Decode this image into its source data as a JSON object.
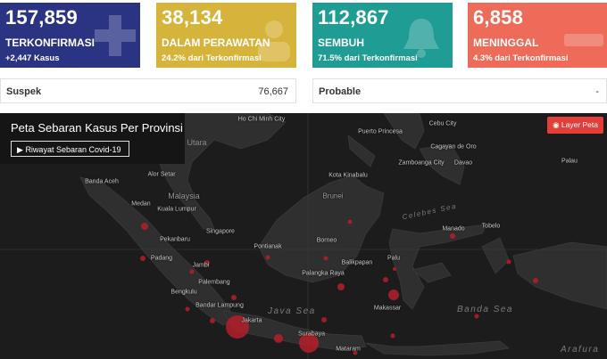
{
  "stats": {
    "confirmed": {
      "value": "157,859",
      "label": "TERKONFIRMASI",
      "sub": "+2,447 Kasus",
      "color": "#2a3483",
      "icon": "plus-icon"
    },
    "treated": {
      "value": "38,134",
      "label": "DALAM PERAWATAN",
      "sub": "24.2% dari Terkonfirmasi",
      "color": "#d6b33a",
      "icon": "patient-icon"
    },
    "recovered": {
      "value": "112,867",
      "label": "SEMBUH",
      "sub": "71.5% dari Terkonfirmasi",
      "color": "#1f9c93",
      "icon": "bell-icon"
    },
    "deaths": {
      "value": "6,858",
      "label": "MENINGGAL",
      "sub": "4.3% dari Terkonfirmasi",
      "color": "#ee6b5a",
      "icon": "minus-icon"
    }
  },
  "suspect": {
    "label": "Suspek",
    "value": "76,667"
  },
  "probable": {
    "label": "Probable",
    "value": "-"
  },
  "map": {
    "title": "Peta Sebaran Kasus Per Provinsi",
    "history_button": "Riwayat Sebaran Covid-19",
    "layer_button": "Layer Peta",
    "cities": [
      "Ho Chi Minh City",
      "Cebu City",
      "Puerto Princesa",
      "Cagayan de Oro",
      "Zamboanga City",
      "Davao",
      "Palau",
      "Banda Aceh",
      "Alor Setar",
      "Kota Kinabalu",
      "Malaysia",
      "Medan",
      "Kuala Lumpur",
      "Brunei",
      "Singapore",
      "Pekanbaru",
      "Pontianak",
      "Borneo",
      "Manado",
      "Tobelo",
      "Padang",
      "Jambi",
      "Balikpapan",
      "Palu",
      "Palembang",
      "Palangka Raya",
      "Bengkulu",
      "Bandar Lampung",
      "Makassar",
      "Jakarta",
      "Surabaya",
      "Mataram"
    ],
    "seas": [
      "Java Sea",
      "Banda Sea",
      "Celebes Sea",
      "Arafura"
    ]
  }
}
